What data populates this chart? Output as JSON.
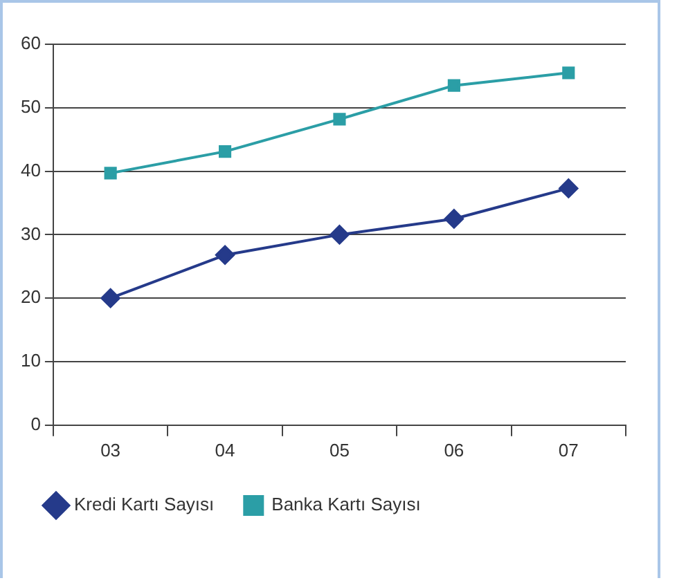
{
  "chart_data": {
    "type": "line",
    "categories": [
      "03",
      "04",
      "05",
      "06",
      "07"
    ],
    "series": [
      {
        "name": "Kredi Kartı Sayısı",
        "color": "#253a8a",
        "values": [
          20,
          26.8,
          30,
          32.5,
          37.3
        ],
        "marker": "diamond"
      },
      {
        "name": "Banka Kartı Sayısı",
        "color": "#2b9ea6",
        "values": [
          39.7,
          43.1,
          48.2,
          53.5,
          55.5
        ],
        "marker": "square"
      }
    ],
    "ylim": [
      0,
      60
    ],
    "yticks": [
      0,
      10,
      20,
      30,
      40,
      50,
      60
    ],
    "grid": "y",
    "legend": "bottom",
    "line_style": "solid"
  }
}
